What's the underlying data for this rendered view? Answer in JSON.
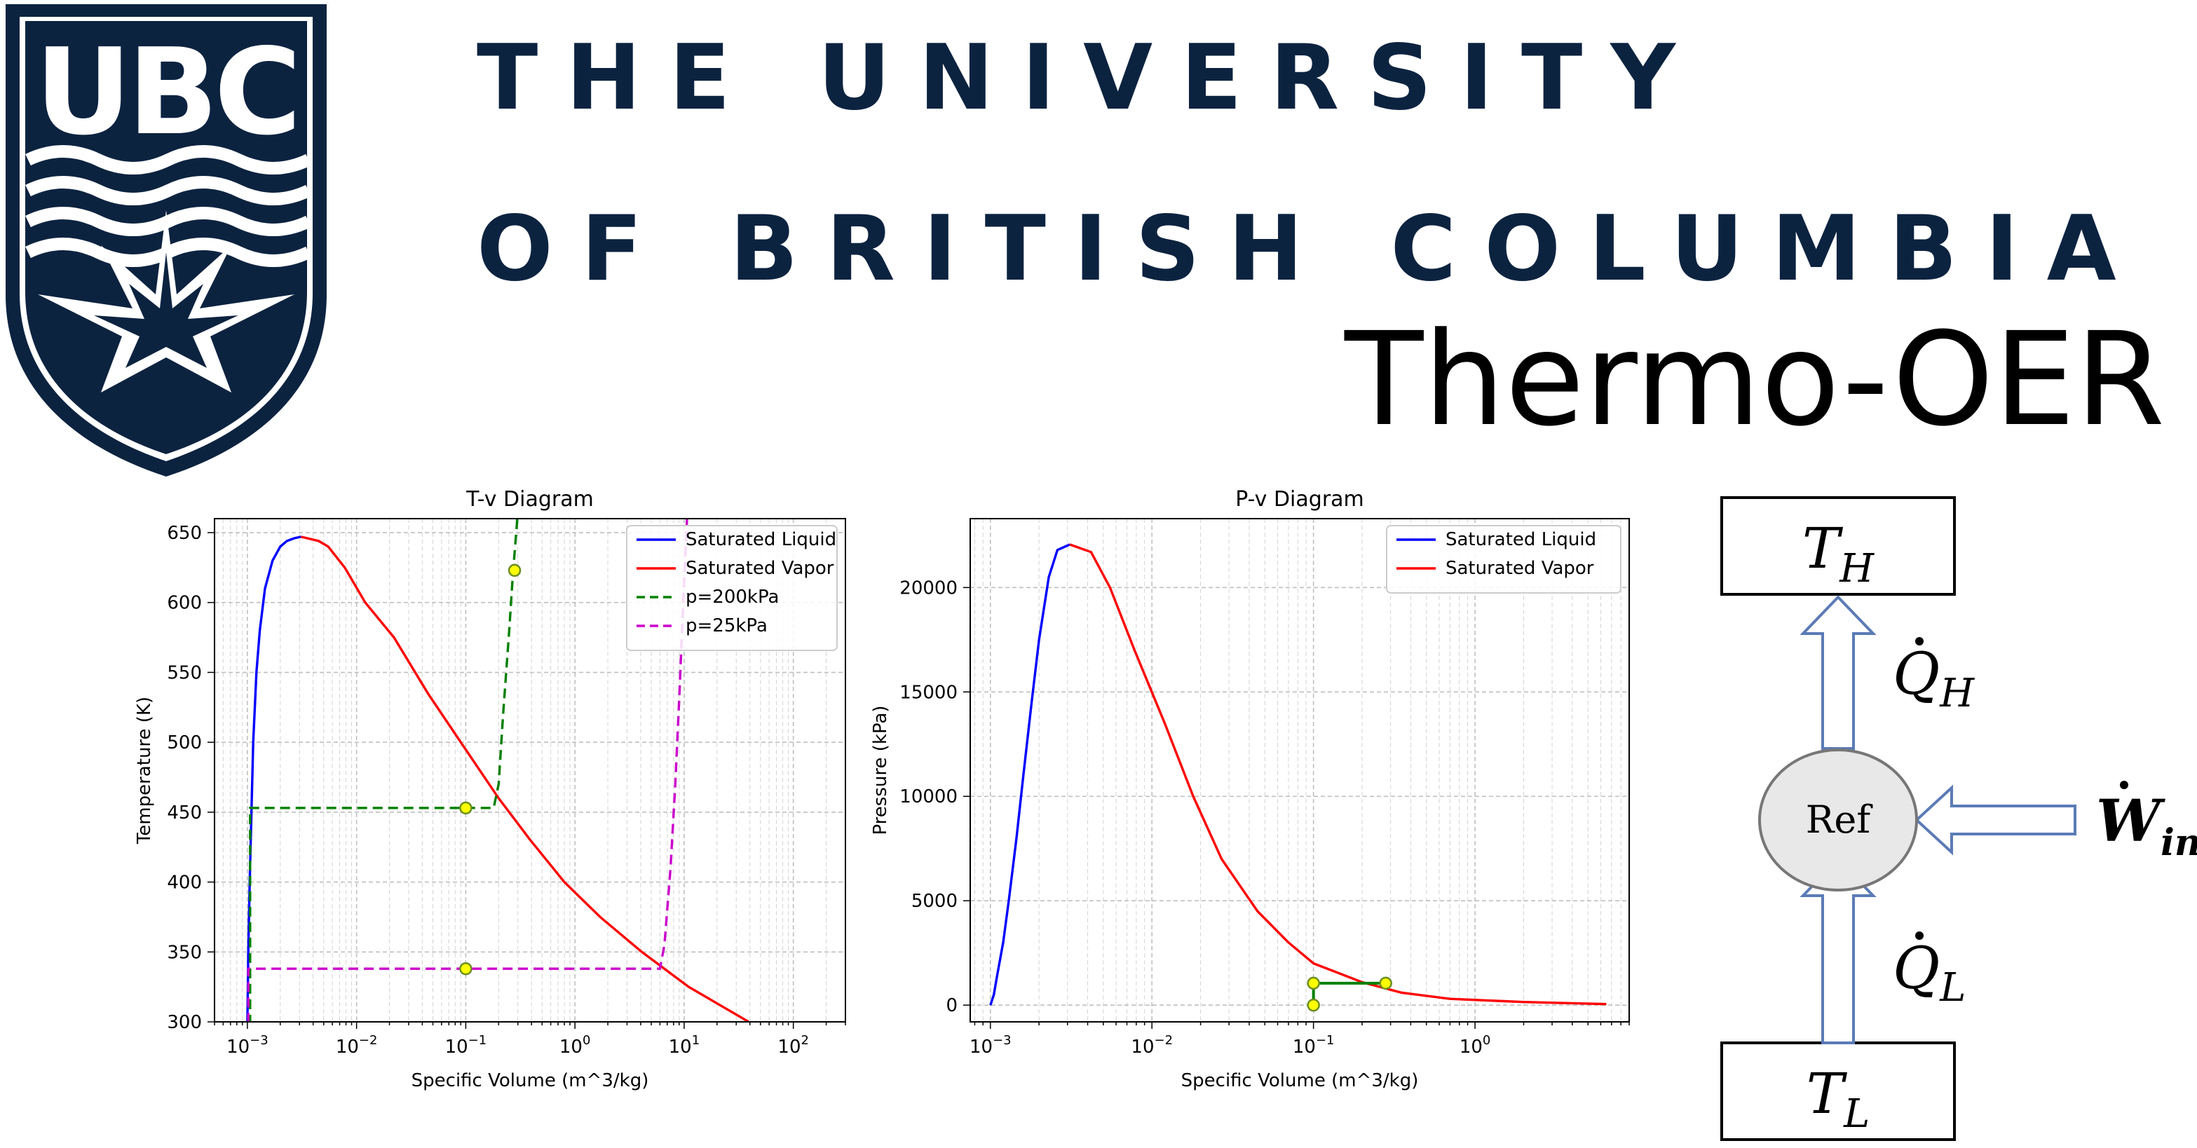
{
  "header": {
    "logo_text": "UBC",
    "university_line1": "THE UNIVERSITY",
    "university_line2": "OF BRITISH COLUMBIA",
    "product_title": "Thermo-OER"
  },
  "colors": {
    "ubc_navy": "#0c2340",
    "sat_liquid": "#0000ff",
    "sat_vapor": "#ff0000",
    "isobar_200": "#008000",
    "isobar_25": "#cc00cc",
    "state_point": "#ffff00",
    "arrow_stroke": "#5b7bb6",
    "ref_fill": "#e8e8e8"
  },
  "chart_data": [
    {
      "type": "line",
      "title": "T-v Diagram",
      "xlabel": "Specific Volume (m^3/kg)",
      "ylabel": "Temperature (K)",
      "xscale": "log",
      "xlim": [
        0.0005,
        300
      ],
      "ylim": [
        300,
        660
      ],
      "xticks": [
        {
          "v": 0.001,
          "b": "10",
          "e": "−3"
        },
        {
          "v": 0.01,
          "b": "10",
          "e": "−2"
        },
        {
          "v": 0.1,
          "b": "10",
          "e": "−1"
        },
        {
          "v": 1,
          "b": "10",
          "e": "0"
        },
        {
          "v": 10,
          "b": "10",
          "e": "1"
        },
        {
          "v": 100,
          "b": "10",
          "e": "2"
        }
      ],
      "yticks": [
        300,
        350,
        400,
        450,
        500,
        550,
        600,
        650
      ],
      "grid": true,
      "legend_position": "top-right",
      "series": [
        {
          "name": "Saturated Liquid",
          "color": "#0000ff",
          "style": "solid",
          "x": [
            0.001,
            0.00102,
            0.00105,
            0.00109,
            0.00113,
            0.00121,
            0.0013,
            0.00145,
            0.0017,
            0.002,
            0.0023,
            0.0027,
            0.0031
          ],
          "y": [
            300,
            350,
            400,
            450,
            500,
            550,
            580,
            610,
            630,
            640,
            644,
            646,
            647
          ]
        },
        {
          "name": "Saturated Vapor",
          "color": "#ff0000",
          "style": "solid",
          "x": [
            0.0031,
            0.0045,
            0.0055,
            0.0078,
            0.012,
            0.022,
            0.045,
            0.09,
            0.2,
            0.39,
            0.8,
            1.7,
            4.1,
            11,
            39
          ],
          "y": [
            647,
            644,
            640,
            625,
            600,
            575,
            535,
            500,
            460,
            430,
            400,
            375,
            350,
            325,
            300
          ]
        },
        {
          "name": "p=200kPa",
          "color": "#008000",
          "style": "dashed",
          "x": [
            0.001,
            0.00106,
            0.00106,
            0.1,
            0.18,
            0.2,
            0.22,
            0.25,
            0.27,
            0.29,
            0.3
          ],
          "y": [
            300,
            300,
            453,
            453,
            453,
            470,
            520,
            580,
            620,
            650,
            665
          ]
        },
        {
          "name": "p=25kPa",
          "color": "#cc00cc",
          "style": "dashed",
          "x": [
            0.001,
            0.00102,
            0.00102,
            0.1,
            6.0,
            6.6,
            7.5,
            8.3,
            9.0,
            9.8,
            10.7
          ],
          "y": [
            300,
            300,
            338,
            338,
            338,
            355,
            410,
            470,
            530,
            600,
            665
          ]
        }
      ],
      "points": [
        {
          "x": 0.28,
          "y": 623
        },
        {
          "x": 0.1,
          "y": 453
        },
        {
          "x": 0.1,
          "y": 338
        }
      ]
    },
    {
      "type": "line",
      "title": "P-v Diagram",
      "xlabel": "Specific Volume (m^3/kg)",
      "ylabel": "Pressure (kPa)",
      "xscale": "log",
      "xlim": [
        0.00075,
        9
      ],
      "ylim": [
        -800,
        23300
      ],
      "xticks": [
        {
          "v": 0.001,
          "b": "10",
          "e": "−3"
        },
        {
          "v": 0.01,
          "b": "10",
          "e": "−2"
        },
        {
          "v": 0.1,
          "b": "10",
          "e": "−1"
        },
        {
          "v": 1,
          "b": "10",
          "e": "0"
        }
      ],
      "yticks": [
        0,
        5000,
        10000,
        15000,
        20000
      ],
      "grid": true,
      "legend_position": "top-right",
      "series": [
        {
          "name": "Saturated Liquid",
          "color": "#0000ff",
          "style": "solid",
          "x": [
            0.001,
            0.00105,
            0.0011,
            0.0012,
            0.0013,
            0.00145,
            0.0016,
            0.0018,
            0.002,
            0.0023,
            0.0026,
            0.0031
          ],
          "y": [
            0,
            500,
            1400,
            3000,
            5000,
            8000,
            11000,
            14500,
            17500,
            20500,
            21800,
            22060
          ]
        },
        {
          "name": "Saturated Vapor",
          "color": "#ff0000",
          "style": "solid",
          "x": [
            0.0031,
            0.0042,
            0.0055,
            0.0078,
            0.012,
            0.018,
            0.027,
            0.045,
            0.07,
            0.1,
            0.2,
            0.35,
            0.7,
            2.0,
            6.5
          ],
          "y": [
            22060,
            21700,
            20000,
            17000,
            13500,
            10000,
            7000,
            4500,
            3000,
            2000,
            1100,
            600,
            300,
            150,
            50
          ]
        }
      ],
      "cycle": {
        "color": "#008000",
        "x": [
          0.1,
          0.1,
          0.28,
          0.1
        ],
        "y": [
          0,
          1050,
          1050,
          1050
        ]
      },
      "points": [
        {
          "x": 0.1,
          "y": 0
        },
        {
          "x": 0.1,
          "y": 1050
        },
        {
          "x": 0.28,
          "y": 1050
        }
      ]
    }
  ],
  "cycle_diagram": {
    "hot_reservoir": {
      "base": "T",
      "sub": "H"
    },
    "cold_reservoir": {
      "base": "T",
      "sub": "L"
    },
    "refrigerant": "Ref",
    "heat_out": {
      "base": "Q",
      "sub": "H"
    },
    "heat_in": {
      "base": "Q",
      "sub": "L"
    },
    "work_in": {
      "base": "W",
      "sub": "in"
    }
  }
}
